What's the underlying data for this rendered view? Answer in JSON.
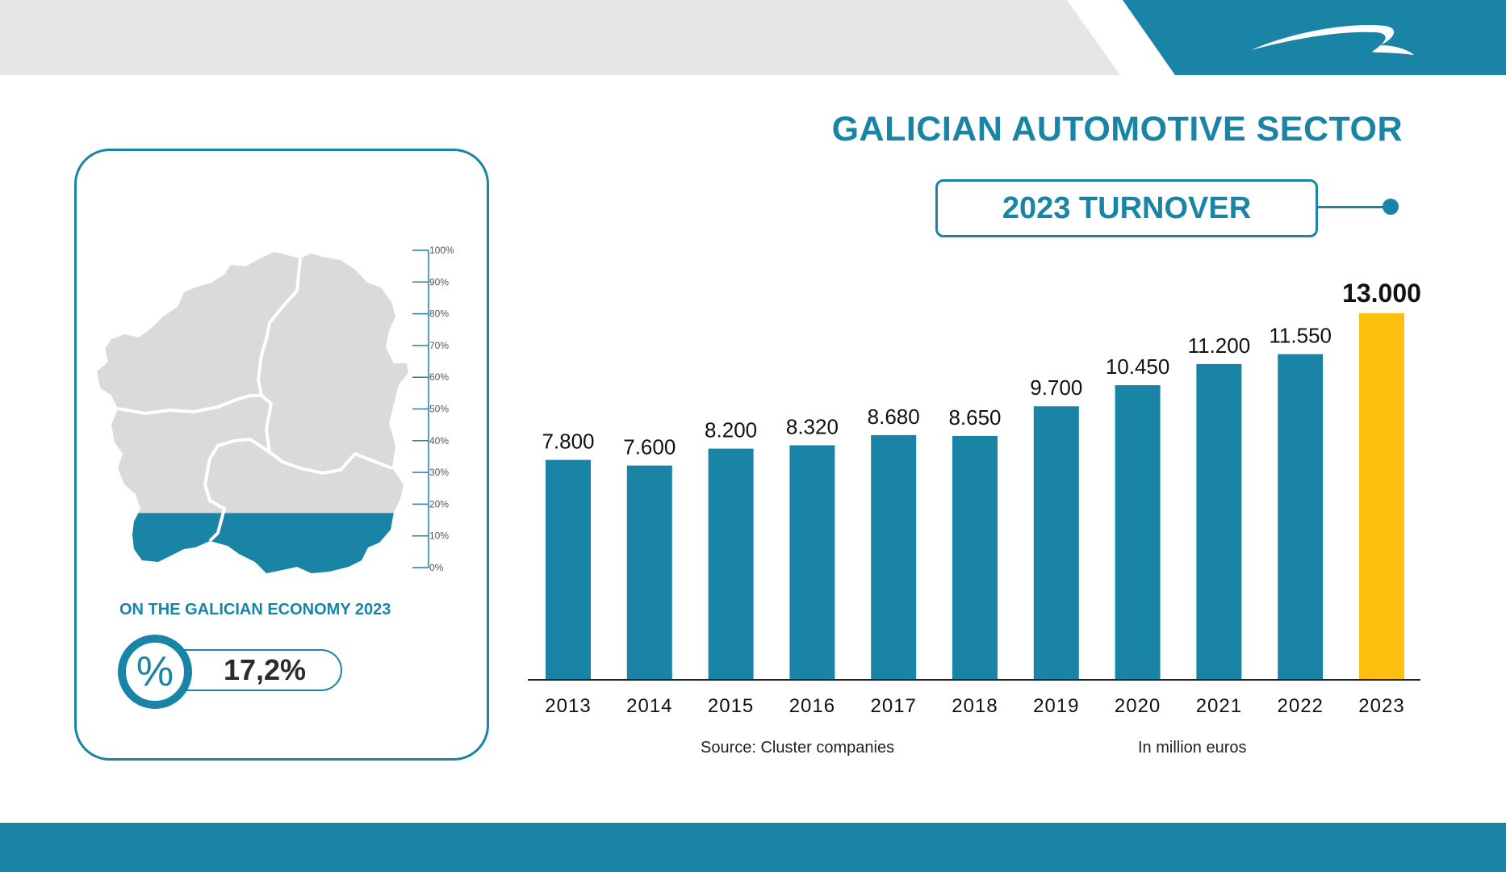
{
  "header": {
    "title": "GALICIAN AUTOMOTIVE SECTOR",
    "subtitle": "2023 TURNOVER"
  },
  "colors": {
    "accent": "#1984a6",
    "highlight": "#fdc00f",
    "map_grey": "#dadada",
    "band_grey": "#e6e6e6"
  },
  "side_panel": {
    "label": "ON THE GALICIAN ECONOMY 2023",
    "percent_symbol": "%",
    "value": "17,2%",
    "scale_ticks": [
      "100%",
      "90%",
      "80%",
      "70%",
      "60%",
      "50%",
      "40%",
      "30%",
      "20%",
      "10%",
      "0%"
    ],
    "fill_fraction": 0.172
  },
  "chart_data": {
    "type": "bar",
    "categories": [
      "2013",
      "2014",
      "2015",
      "2016",
      "2017",
      "2018",
      "2019",
      "2020",
      "2021",
      "2022",
      "2023"
    ],
    "values": [
      7800,
      7600,
      8200,
      8320,
      8680,
      8650,
      9700,
      10450,
      11200,
      11550,
      13000
    ],
    "labels": [
      "7.800",
      "7.600",
      "8.200",
      "8.320",
      "8.680",
      "8.650",
      "9.700",
      "10.450",
      "11.200",
      "11.550",
      "13.000"
    ],
    "highlight_category": "2023",
    "ylim": [
      0,
      13000
    ],
    "grid": false,
    "xlabel": "",
    "ylabel": ""
  },
  "footer": {
    "source": "Source: Cluster companies",
    "unit": "In million euros"
  },
  "icons": {
    "logo": "swoosh-logo-icon",
    "percent": "percent-icon"
  }
}
